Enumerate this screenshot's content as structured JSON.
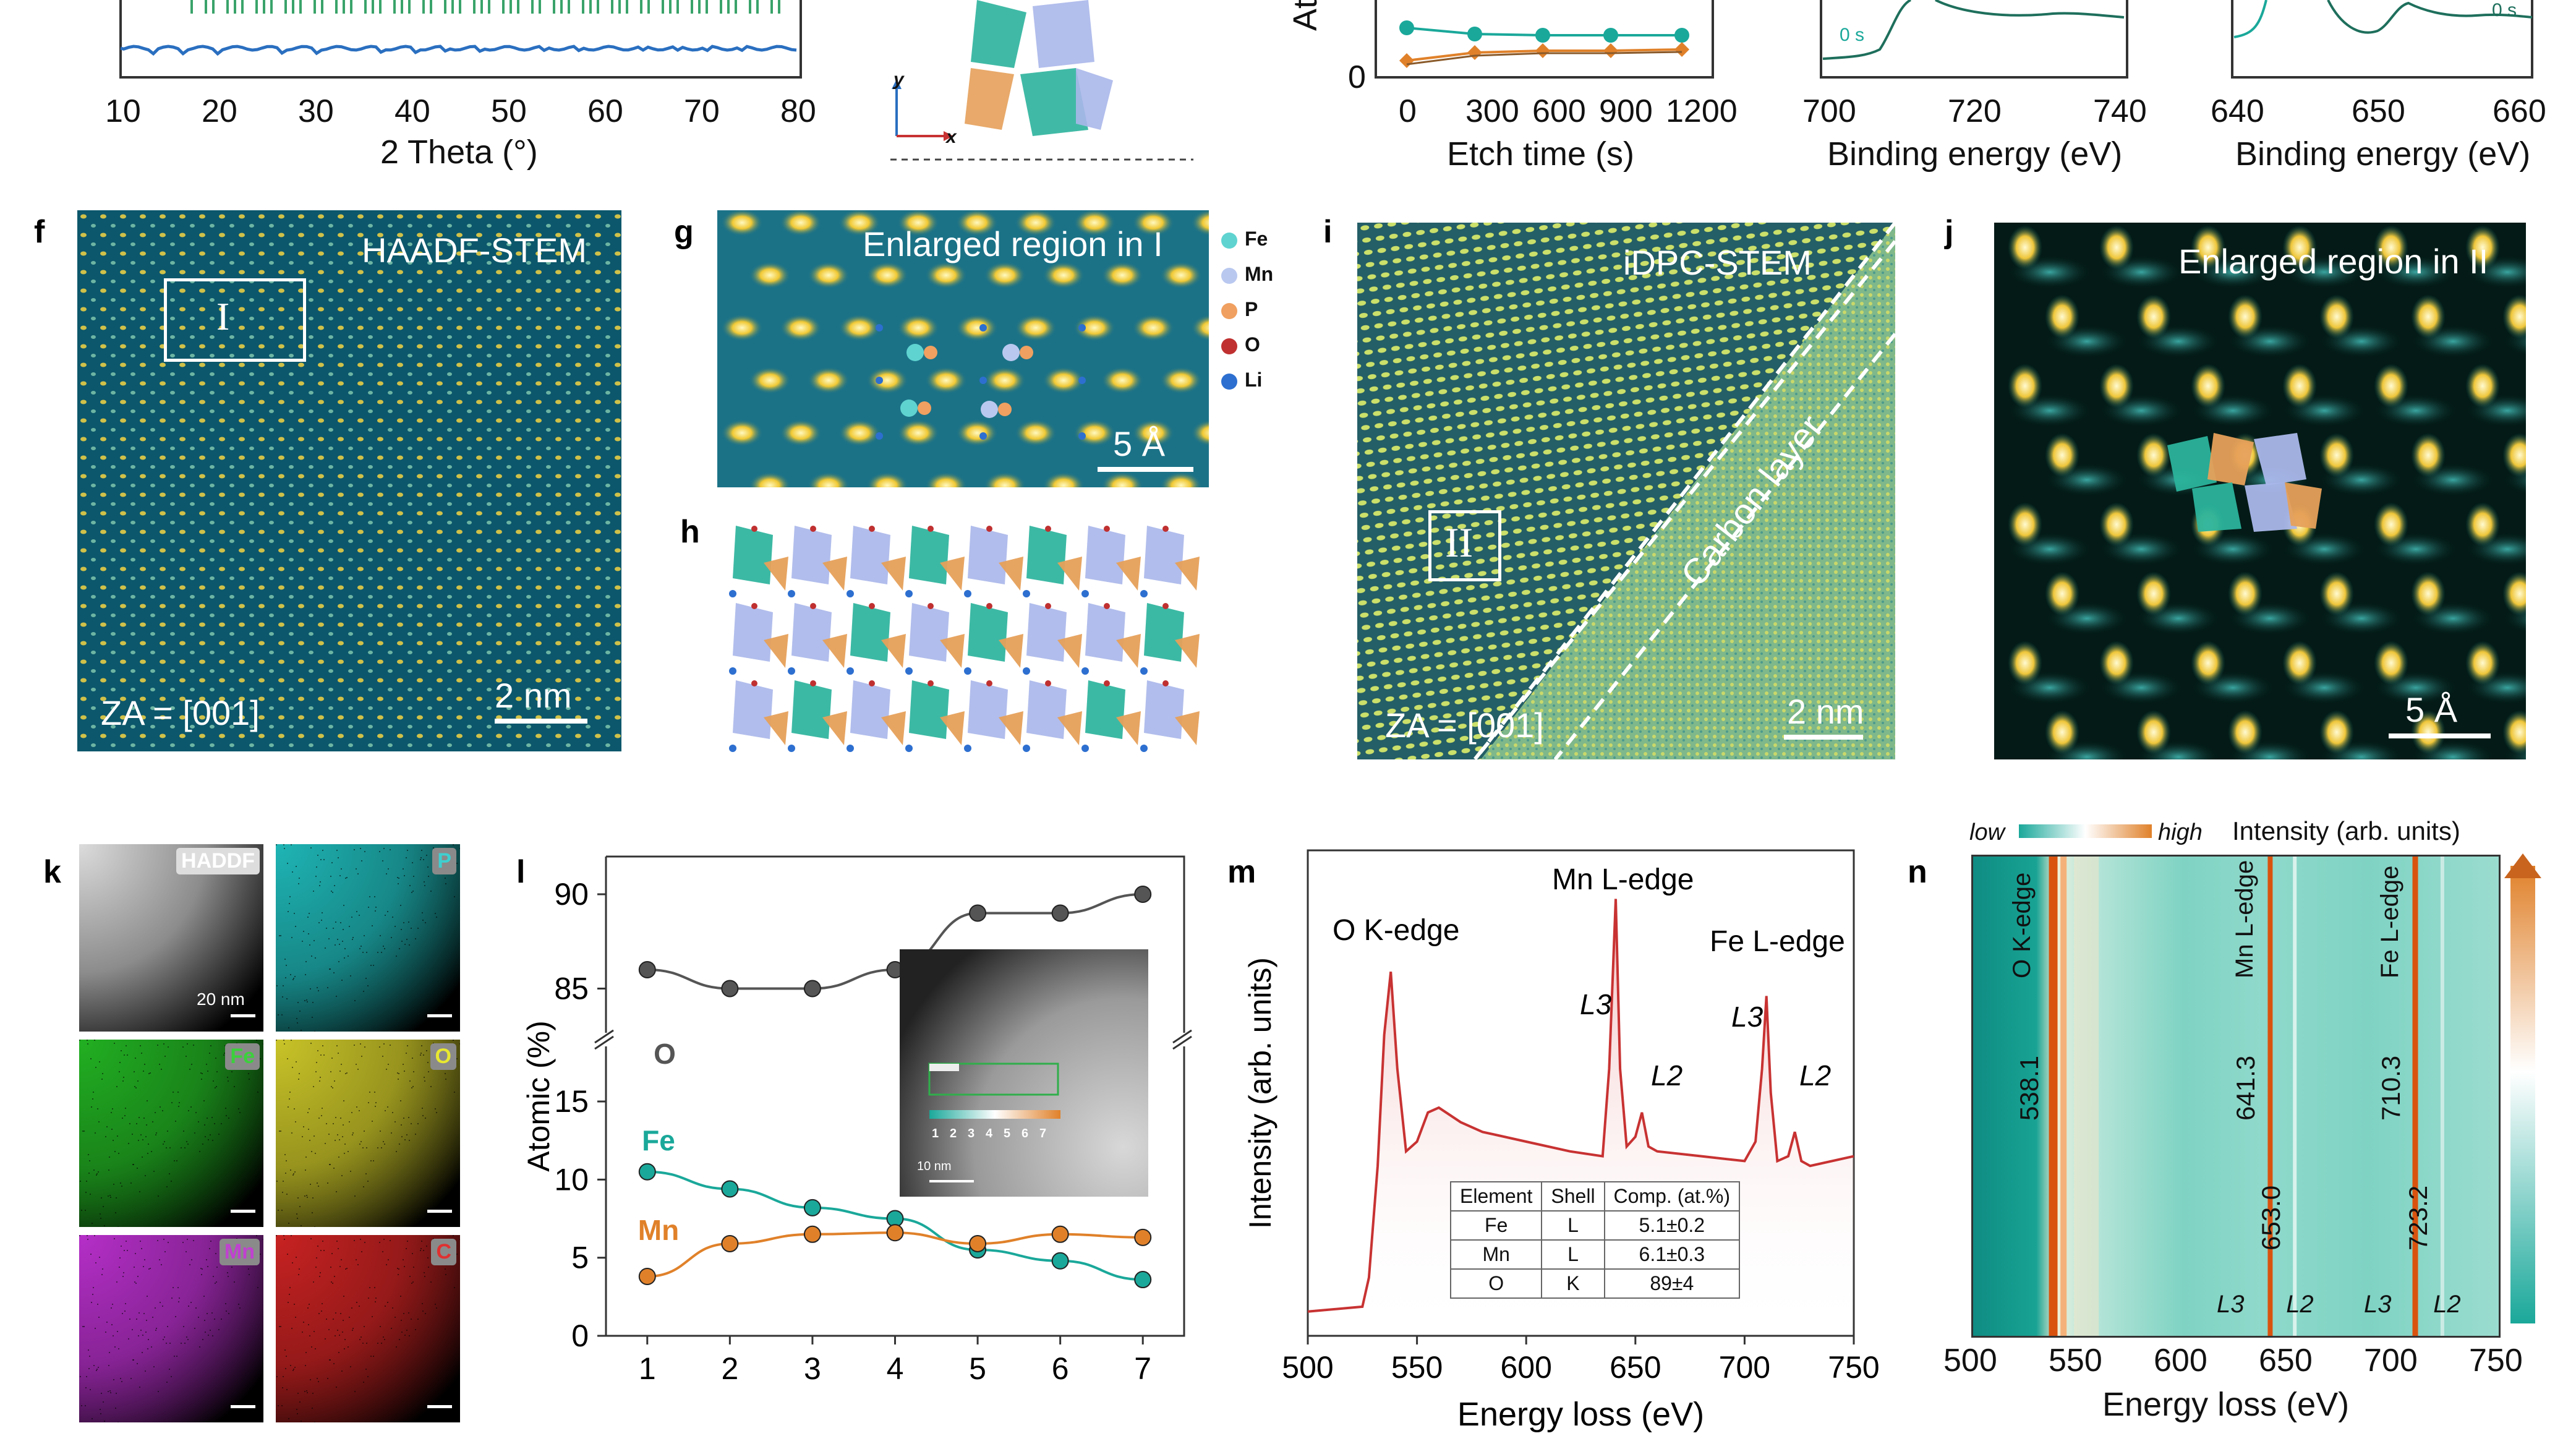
{
  "top": {
    "xrd": {
      "x_ticks": [
        "10",
        "20",
        "30",
        "40",
        "50",
        "60",
        "70",
        "80"
      ],
      "xlabel": "2 Theta (°)"
    },
    "struct_axes": {
      "y": "y",
      "x": "x"
    },
    "etch": {
      "ylabel": "At",
      "y_tick": "0",
      "x_ticks": [
        "0",
        "300",
        "600",
        "900",
        "1200"
      ],
      "xlabel": "Etch time (s)"
    },
    "xps_fe": {
      "time_label": "0 s",
      "x_ticks": [
        "700",
        "720",
        "740"
      ],
      "xlabel": "Binding energy (eV)"
    },
    "xps_mn": {
      "time_label": "0 s",
      "x_ticks": [
        "640",
        "650",
        "660"
      ],
      "xlabel": "Binding energy (eV)"
    }
  },
  "panel_f": {
    "label": "f",
    "title": "HAADF-STEM",
    "roi": "I",
    "za": "ZA = [001]",
    "scale": "2 nm"
  },
  "panel_g": {
    "label": "g",
    "title": "Enlarged region in  I",
    "scale": "5 Å",
    "legend": [
      {
        "name": "Fe",
        "color": "#5fd3d0"
      },
      {
        "name": "Mn",
        "color": "#b9c8ef"
      },
      {
        "name": "P",
        "color": "#f0a060"
      },
      {
        "name": "O",
        "color": "#c03030"
      },
      {
        "name": "Li",
        "color": "#2d6fd0"
      }
    ]
  },
  "panel_h": {
    "label": "h"
  },
  "panel_i": {
    "label": "i",
    "title": "iDPC-STEM",
    "roi": "II",
    "carbon": "Carbon layer",
    "za": "ZA = [001]",
    "scale": "2 nm"
  },
  "panel_j": {
    "label": "j",
    "title": "Enlarged region in  II",
    "scale": "5 Å"
  },
  "panel_k": {
    "label": "k",
    "maps": [
      {
        "name": "HADDF",
        "scale": "20 nm",
        "tag_bg": "#dddddd",
        "tag_fg": "#ffffff",
        "base": "#8a8a8a"
      },
      {
        "name": "P",
        "scale": "",
        "tag_bg": "#8a8a8a",
        "tag_fg": "#3ed0d0",
        "base": "#1fb5b5"
      },
      {
        "name": "Fe",
        "scale": "",
        "tag_bg": "#8a8a8a",
        "tag_fg": "#3bd13b",
        "base": "#22b022"
      },
      {
        "name": "O",
        "scale": "",
        "tag_bg": "#8a8a8a",
        "tag_fg": "#e8e830",
        "base": "#c9c428"
      },
      {
        "name": "Mn",
        "scale": "",
        "tag_bg": "#8a8a8a",
        "tag_fg": "#c040d0",
        "base": "#b52fc8"
      },
      {
        "name": "C",
        "scale": "",
        "tag_bg": "#8a8a8a",
        "tag_fg": "#e03030",
        "base": "#c82222"
      }
    ]
  },
  "panel_l": {
    "label": "l",
    "ylabel": "Atomic (%)",
    "inset_ticks": [
      "1",
      "2",
      "3",
      "4",
      "5",
      "6",
      "7"
    ],
    "inset_scale": "10 nm"
  },
  "panel_m": {
    "label": "m",
    "ylabel": "Intensity (arb. units)",
    "ann_o": "O K-edge",
    "ann_mn": "Mn L-edge",
    "ann_fe": "Fe L-edge",
    "l3": "L3",
    "l2": "L2",
    "table": {
      "headers": [
        "Element",
        "Shell",
        "Comp. (at.%)"
      ],
      "rows": [
        [
          "Fe",
          "L",
          "5.1±0.2"
        ],
        [
          "Mn",
          "L",
          "6.1±0.3"
        ],
        [
          "O",
          "K",
          "89±4"
        ]
      ]
    }
  },
  "panel_n": {
    "label": "n",
    "low": "low",
    "high": "high",
    "intensity": "Intensity (arb. units)",
    "edge_o": "O K-edge",
    "edge_mn": "Mn L-edge",
    "edge_fe": "Fe L-edge",
    "peaks": [
      "538.1",
      "641.3",
      "653.0",
      "710.3",
      "723.2"
    ],
    "bottom": [
      "L3",
      "L2",
      "L3",
      "L2"
    ],
    "x_ticks": [
      "500",
      "550",
      "600",
      "650",
      "700",
      "750"
    ],
    "xlabel": "Energy loss (eV)"
  },
  "chart_data": [
    {
      "type": "line",
      "title": "",
      "xlabel": "",
      "ylabel": "Atomic (%)",
      "x": [
        1,
        2,
        3,
        4,
        5,
        6,
        7
      ],
      "xlim": [
        0.5,
        7.5
      ],
      "ylim_lower": [
        0,
        19
      ],
      "ylim_upper": [
        82,
        92
      ],
      "y_ticks_lower": [
        0,
        5,
        10,
        15
      ],
      "y_ticks_upper": [
        85,
        90
      ],
      "series": [
        {
          "name": "O",
          "values": [
            86,
            85,
            85,
            86,
            89,
            89,
            90
          ],
          "color": "#555555"
        },
        {
          "name": "Fe",
          "values": [
            10.5,
            9.4,
            8.2,
            7.5,
            5.5,
            4.8,
            3.6
          ],
          "color": "#1aa89a"
        },
        {
          "name": "Mn",
          "values": [
            3.8,
            5.9,
            6.5,
            6.6,
            5.9,
            6.5,
            6.3
          ],
          "color": "#e0812a"
        }
      ]
    },
    {
      "type": "line",
      "title": "",
      "xlabel": "Energy loss (eV)",
      "ylabel": "Intensity (arb. units)",
      "xlim": [
        500,
        750
      ],
      "x_ticks": [
        500,
        550,
        600,
        650,
        700,
        750
      ],
      "series": [
        {
          "name": "",
          "color": "#c83232",
          "x": [
            500,
            525,
            528,
            532,
            535,
            538,
            541,
            545,
            550,
            555,
            560,
            570,
            580,
            600,
            620,
            635,
            638,
            641,
            643,
            646,
            650,
            653,
            656,
            660,
            680,
            700,
            705,
            708,
            710,
            712,
            715,
            720,
            723,
            726,
            730,
            750
          ],
          "values": [
            0.05,
            0.06,
            0.12,
            0.35,
            0.62,
            0.75,
            0.55,
            0.38,
            0.4,
            0.46,
            0.47,
            0.44,
            0.42,
            0.4,
            0.38,
            0.37,
            0.55,
            0.9,
            0.55,
            0.39,
            0.41,
            0.46,
            0.39,
            0.38,
            0.37,
            0.36,
            0.4,
            0.55,
            0.7,
            0.5,
            0.36,
            0.37,
            0.42,
            0.36,
            0.35,
            0.37
          ]
        }
      ]
    }
  ]
}
